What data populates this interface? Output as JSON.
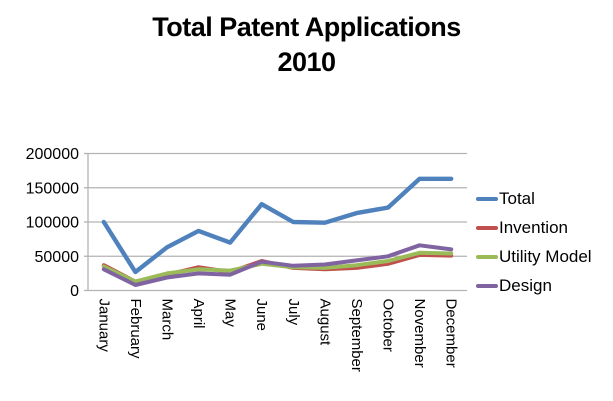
{
  "chart_data": {
    "type": "line",
    "title": "Total Patent Applications",
    "subtitle": "2010",
    "categories": [
      "January",
      "February",
      "March",
      "April",
      "May",
      "June",
      "July",
      "August",
      "September",
      "October",
      "November",
      "December"
    ],
    "series": [
      {
        "name": "Total",
        "color": "#4F81BD",
        "values": [
          100000,
          27000,
          63000,
          87000,
          70000,
          126000,
          100000,
          99000,
          113000,
          121000,
          163000,
          163000
        ]
      },
      {
        "name": "Invention",
        "color": "#C0504D",
        "values": [
          37000,
          13000,
          23000,
          34000,
          27000,
          43000,
          33000,
          31000,
          33000,
          39000,
          52000,
          51000
        ]
      },
      {
        "name": "Utility Model",
        "color": "#9BBB59",
        "values": [
          35000,
          13000,
          25000,
          31000,
          29000,
          39000,
          34000,
          33000,
          37000,
          43000,
          55000,
          54000
        ]
      },
      {
        "name": "Design",
        "color": "#8064A2",
        "values": [
          31000,
          8000,
          19000,
          25000,
          23000,
          42000,
          36000,
          38000,
          44000,
          50000,
          66000,
          60000
        ]
      }
    ],
    "y_axis": {
      "min": 0,
      "max": 200000,
      "step": 50000,
      "tick_labels": [
        "0",
        "50000",
        "100000",
        "150000",
        "200000"
      ]
    },
    "x_axis": {
      "label_rotation_deg": 90
    },
    "legend_position": "right",
    "grid": true,
    "grid_color": "#B3B3B3",
    "text_color": "#000000"
  }
}
